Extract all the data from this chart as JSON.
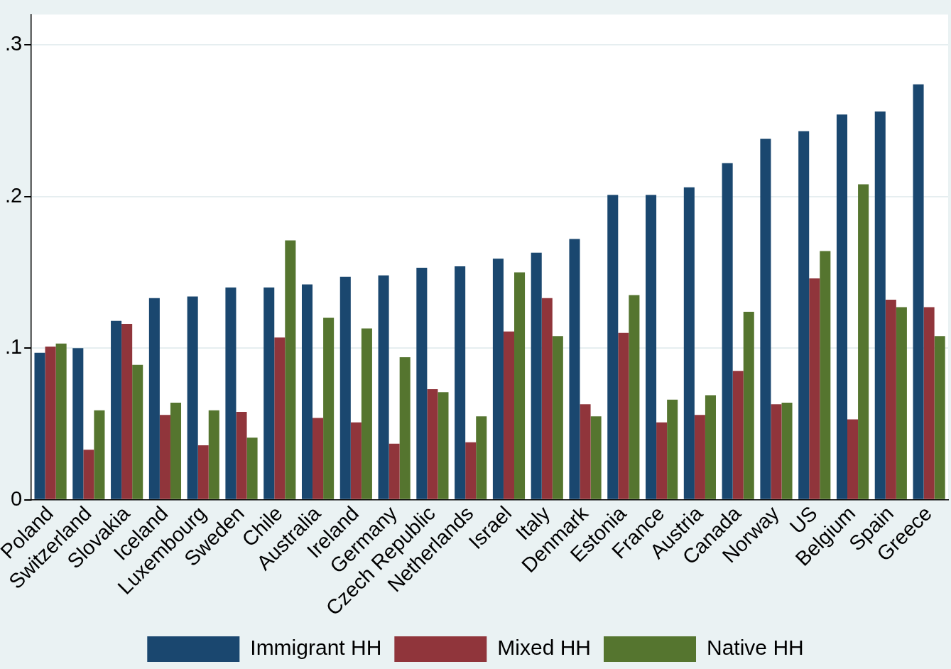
{
  "chart_data": {
    "type": "bar",
    "categories": [
      "Poland",
      "Switzerland",
      "Slovakia",
      "Iceland",
      "Luxembourg",
      "Sweden",
      "Chile",
      "Australia",
      "Ireland",
      "Germany",
      "Czech Republic",
      "Netherlands",
      "Israel",
      "Italy",
      "Denmark",
      "Estonia",
      "France",
      "Austria",
      "Canada",
      "Norway",
      "US",
      "Belgium",
      "Spain",
      "Greece"
    ],
    "series": [
      {
        "name": "Immigrant HH",
        "color": "#1a476f",
        "values": [
          0.097,
          0.1,
          0.118,
          0.133,
          0.134,
          0.14,
          0.14,
          0.142,
          0.147,
          0.148,
          0.153,
          0.154,
          0.159,
          0.163,
          0.172,
          0.201,
          0.201,
          0.206,
          0.222,
          0.238,
          0.243,
          0.254,
          0.256,
          0.274
        ]
      },
      {
        "name": "Mixed HH",
        "color": "#90353b",
        "values": [
          0.101,
          0.033,
          0.116,
          0.056,
          0.036,
          0.058,
          0.107,
          0.054,
          0.051,
          0.037,
          0.073,
          0.038,
          0.111,
          0.133,
          0.063,
          0.11,
          0.051,
          0.056,
          0.085,
          0.063,
          0.146,
          0.053,
          0.132,
          0.127
        ]
      },
      {
        "name": "Native HH",
        "color": "#55752f",
        "values": [
          0.103,
          0.059,
          0.089,
          0.064,
          0.059,
          0.041,
          0.171,
          0.12,
          0.113,
          0.094,
          0.071,
          0.055,
          0.15,
          0.108,
          0.055,
          0.135,
          0.066,
          0.069,
          0.124,
          0.064,
          0.164,
          0.208,
          0.127,
          0.108
        ]
      }
    ],
    "ylim": [
      0,
      0.32
    ],
    "yticks": [
      {
        "value": 0,
        "label": "0"
      },
      {
        "value": 0.1,
        "label": ".1"
      },
      {
        "value": 0.2,
        "label": ".2"
      },
      {
        "value": 0.3,
        "label": ".3"
      }
    ],
    "grid": "y",
    "legend": "bottom"
  }
}
